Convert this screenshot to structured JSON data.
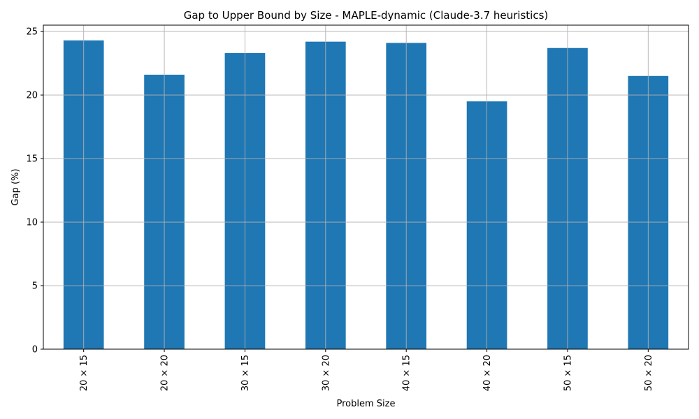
{
  "chart_data": {
    "type": "bar",
    "title": "Gap to Upper Bound by Size - MAPLE-dynamic (Claude-3.7 heuristics)",
    "xlabel": "Problem Size",
    "ylabel": "Gap (%)",
    "categories": [
      "20 × 15",
      "20 × 20",
      "30 × 15",
      "30 × 20",
      "40 × 15",
      "40 × 20",
      "50 × 15",
      "50 × 20"
    ],
    "values": [
      24.3,
      21.6,
      23.3,
      24.2,
      24.1,
      19.5,
      23.7,
      21.5
    ],
    "ylim": [
      0,
      25.5
    ],
    "yticks": [
      0,
      5,
      10,
      15,
      20,
      25
    ],
    "grid": true,
    "bar_color": "#1f77b4",
    "legend": "none"
  }
}
